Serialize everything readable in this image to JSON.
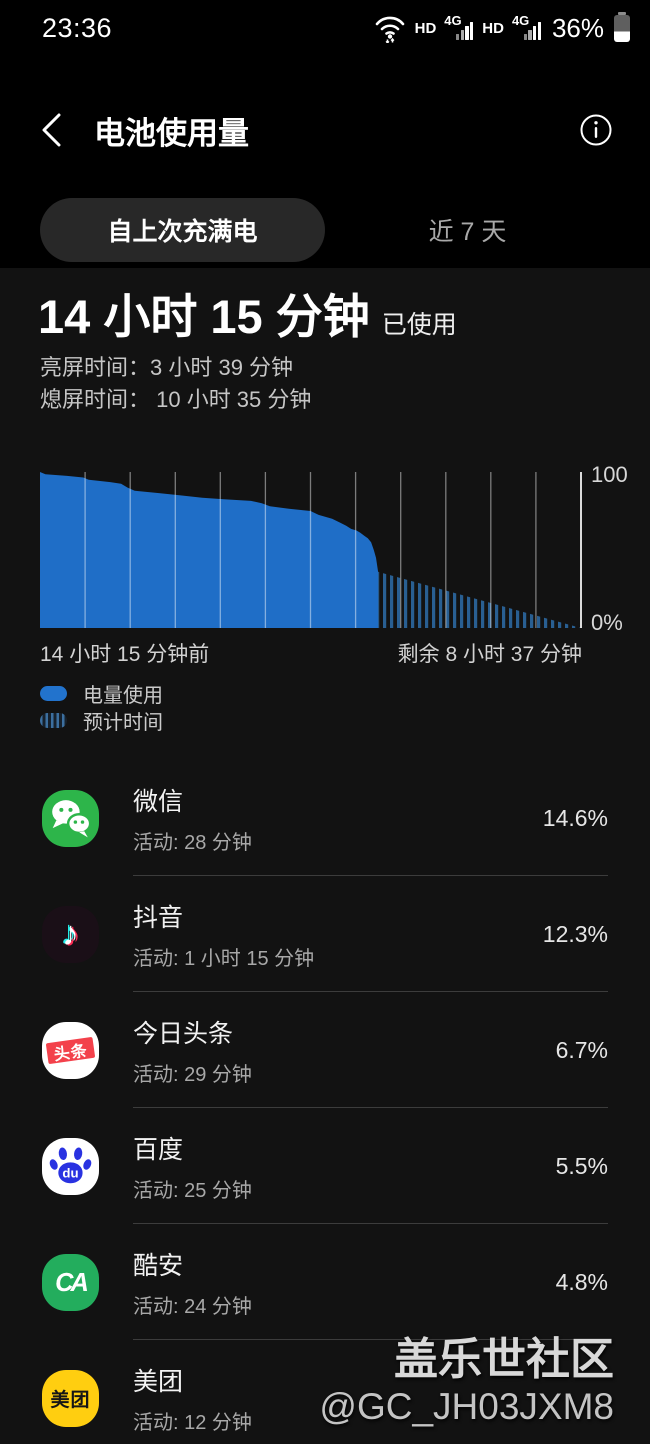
{
  "status_bar": {
    "time": "23:36",
    "hd1": "HD",
    "net1": "4G",
    "hd2": "HD",
    "net2": "4G",
    "battery_percent": "36%"
  },
  "header": {
    "title": "电池使用量"
  },
  "tabs": {
    "selected": "自上次充满电",
    "other": "近 7 天"
  },
  "summary": {
    "duration": "14 小时 15 分钟",
    "used_label": "已使用",
    "screen_on": "亮屏时间：3 小时 39 分钟",
    "screen_off": "熄屏时间： 10 小时 35 分钟"
  },
  "chart_data": {
    "type": "area",
    "title": "电池使用量历史与预计",
    "ylim": [
      0,
      100
    ],
    "ylabel_top": "100",
    "ylabel_bottom": "0%",
    "xlabel_left": "14 小时 15 分钟前",
    "xlabel_right": "剩余 8 小时 37 分钟",
    "grid": "vertical",
    "gridline_intervals": 12,
    "current_battery_percent": 36,
    "series": [
      {
        "name": "电量使用",
        "style": "solid",
        "color": "#1f6ec7",
        "points": [
          [
            0,
            100
          ],
          [
            0.01,
            98.5
          ],
          [
            0.05,
            97.5
          ],
          [
            0.08,
            96.5
          ],
          [
            0.09,
            95
          ],
          [
            0.13,
            93.5
          ],
          [
            0.15,
            92.5
          ],
          [
            0.162,
            90
          ],
          [
            0.175,
            88
          ],
          [
            0.22,
            86.5
          ],
          [
            0.26,
            85
          ],
          [
            0.3,
            83.5
          ],
          [
            0.34,
            82.5
          ],
          [
            0.39,
            81.5
          ],
          [
            0.41,
            80
          ],
          [
            0.425,
            78
          ],
          [
            0.46,
            76.5
          ],
          [
            0.5,
            75
          ],
          [
            0.515,
            72.5
          ],
          [
            0.54,
            70
          ],
          [
            0.555,
            67.5
          ],
          [
            0.566,
            65.5
          ],
          [
            0.575,
            63.5
          ],
          [
            0.585,
            62.5
          ],
          [
            0.592,
            61
          ],
          [
            0.6,
            59
          ],
          [
            0.606,
            57.5
          ],
          [
            0.612,
            55
          ],
          [
            0.617,
            50
          ],
          [
            0.621,
            45
          ],
          [
            0.625,
            36
          ]
        ]
      },
      {
        "name": "预计时间",
        "style": "hatched",
        "color": "#2d6ca8",
        "points": [
          [
            0.625,
            36
          ],
          [
            1,
            0
          ]
        ]
      }
    ]
  },
  "legend": [
    {
      "label": "电量使用",
      "style": "solid"
    },
    {
      "label": "预计时间",
      "style": "hatch"
    }
  ],
  "apps": [
    {
      "name": "微信",
      "activity": "活动: 28 分钟",
      "percent": "14.6%",
      "icon": "wechat",
      "icon_bg": "#2db54a",
      "icon_text": ""
    },
    {
      "name": "抖音",
      "activity": "活动: 1 小时 15 分钟",
      "percent": "12.3%",
      "icon": "douyin",
      "icon_bg": "#1a0f17",
      "icon_text": ""
    },
    {
      "name": "今日头条",
      "activity": "活动: 29 分钟",
      "percent": "6.7%",
      "icon": "toutiao",
      "icon_bg": "#ffffff",
      "icon_text": "头条"
    },
    {
      "name": "百度",
      "activity": "活动: 25 分钟",
      "percent": "5.5%",
      "icon": "baidu",
      "icon_bg": "#ffffff",
      "icon_text": "du"
    },
    {
      "name": "酷安",
      "activity": "活动: 24 分钟",
      "percent": "4.8%",
      "icon": "coolapk",
      "icon_bg": "#23ad5d",
      "icon_text": "CA"
    },
    {
      "name": "美团",
      "activity": "活动: 12 分钟",
      "percent": "",
      "icon": "meituan",
      "icon_bg": "#ffce10",
      "icon_text": "美团"
    }
  ],
  "watermark": {
    "line1": "盖乐世社区",
    "line2": "@GC_JH03JXM8"
  }
}
